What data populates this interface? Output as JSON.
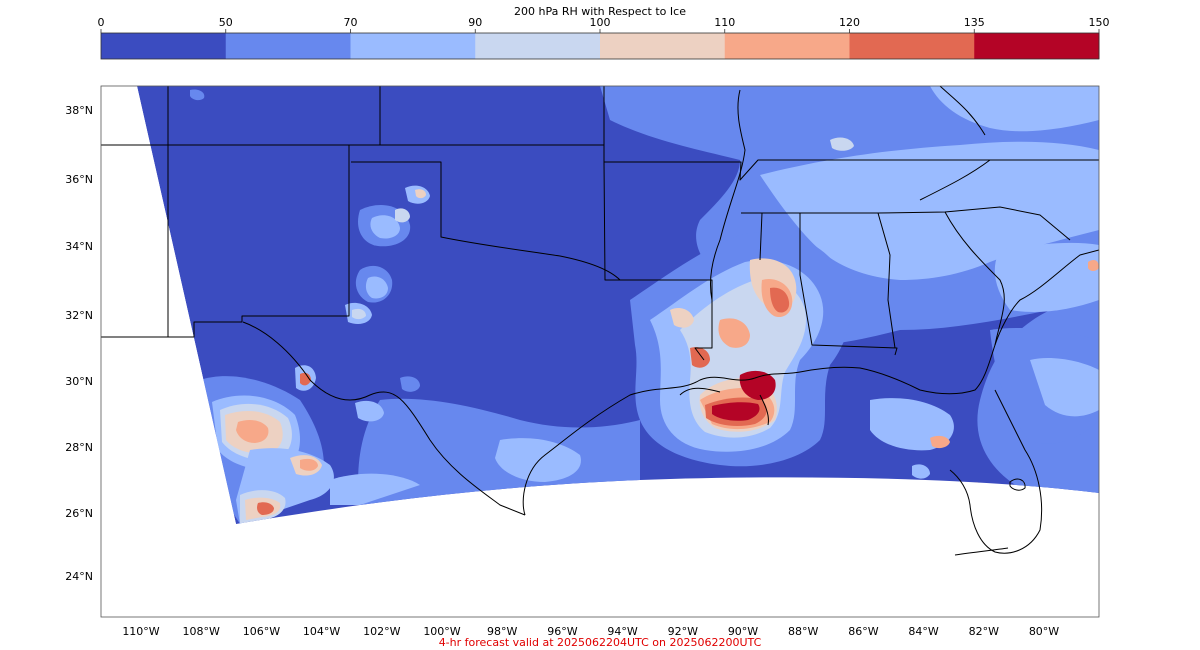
{
  "colorbar": {
    "title": "200 hPa RH with Respect to Ice",
    "ticks": [
      "0",
      "50",
      "70",
      "90",
      "100",
      "110",
      "120",
      "135",
      "150"
    ],
    "colors": [
      "#3b4cc0",
      "#6788ee",
      "#9abbff",
      "#c9d7f0",
      "#edd1c2",
      "#f7a889",
      "#e26952",
      "#b40426"
    ]
  },
  "map": {
    "lat_labels": [
      "38°N",
      "36°N",
      "34°N",
      "32°N",
      "30°N",
      "28°N",
      "26°N",
      "24°N"
    ],
    "lon_labels": [
      "110°W",
      "108°W",
      "106°W",
      "104°W",
      "102°W",
      "100°W",
      "98°W",
      "96°W",
      "94°W",
      "92°W",
      "90°W",
      "88°W",
      "86°W",
      "84°W",
      "82°W",
      "80°W"
    ]
  },
  "footer": {
    "caption": "4-hr forecast valid at 2025062204UTC on 2025062200UTC"
  }
}
